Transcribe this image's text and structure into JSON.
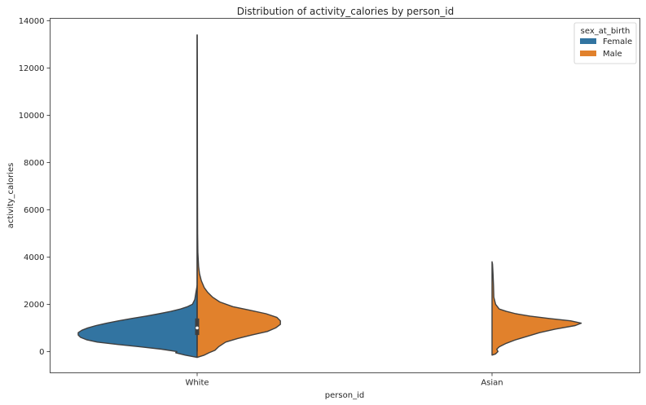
{
  "chart_data": {
    "type": "violin",
    "split": true,
    "title": "Distribution of activity_calories by person_id",
    "xlabel": "person_id",
    "ylabel": "activity_calories",
    "categories": [
      "White",
      "Asian"
    ],
    "ylim": [
      -900,
      14100
    ],
    "yticks": [
      0,
      2000,
      4000,
      6000,
      8000,
      10000,
      12000,
      14000
    ],
    "grid": false,
    "legend": {
      "title": "sex_at_birth",
      "placement": "top-right",
      "entries": [
        {
          "label": "Female",
          "color": "#3274a1"
        },
        {
          "label": "Male",
          "color": "#e1812c"
        }
      ]
    },
    "series": [
      {
        "name": "Female",
        "color": "#3274a1",
        "violins": [
          {
            "category": "White",
            "side": "left",
            "profile": [
              [
                -250,
                0.0
              ],
              [
                -150,
                0.1
              ],
              [
                -50,
                0.18
              ],
              [
                0,
                0.17
              ],
              [
                100,
                0.3
              ],
              [
                200,
                0.48
              ],
              [
                300,
                0.67
              ],
              [
                400,
                0.84
              ],
              [
                500,
                0.93
              ],
              [
                600,
                0.98
              ],
              [
                700,
                1.0
              ],
              [
                800,
                1.0
              ],
              [
                900,
                0.97
              ],
              [
                1000,
                0.92
              ],
              [
                1100,
                0.85
              ],
              [
                1200,
                0.76
              ],
              [
                1300,
                0.66
              ],
              [
                1400,
                0.55
              ],
              [
                1500,
                0.43
              ],
              [
                1600,
                0.32
              ],
              [
                1700,
                0.22
              ],
              [
                1800,
                0.14
              ],
              [
                1900,
                0.08
              ],
              [
                2000,
                0.04
              ],
              [
                2200,
                0.02
              ],
              [
                2500,
                0.01
              ],
              [
                2800,
                0.0
              ]
            ]
          }
        ]
      },
      {
        "name": "Male",
        "color": "#e1812c",
        "violins": [
          {
            "category": "White",
            "side": "right",
            "profile": [
              [
                -250,
                0.0
              ],
              [
                -150,
                0.06
              ],
              [
                -50,
                0.1
              ],
              [
                50,
                0.15
              ],
              [
                200,
                0.18
              ],
              [
                400,
                0.24
              ],
              [
                550,
                0.34
              ],
              [
                700,
                0.46
              ],
              [
                850,
                0.59
              ],
              [
                1000,
                0.66
              ],
              [
                1150,
                0.7
              ],
              [
                1300,
                0.7
              ],
              [
                1450,
                0.67
              ],
              [
                1600,
                0.58
              ],
              [
                1750,
                0.44
              ],
              [
                1900,
                0.3
              ],
              [
                2100,
                0.19
              ],
              [
                2300,
                0.13
              ],
              [
                2500,
                0.09
              ],
              [
                2700,
                0.06
              ],
              [
                3000,
                0.035
              ],
              [
                3300,
                0.02
              ],
              [
                3600,
                0.012
              ],
              [
                4200,
                0.006
              ],
              [
                5000,
                0.004
              ],
              [
                7000,
                0.003
              ],
              [
                10000,
                0.002
              ],
              [
                12000,
                0.002
              ],
              [
                13400,
                0.0
              ]
            ]
          },
          {
            "category": "Asian",
            "side": "right",
            "profile": [
              [
                -150,
                0.0
              ],
              [
                -100,
                0.03
              ],
              [
                0,
                0.05
              ],
              [
                100,
                0.04
              ],
              [
                200,
                0.06
              ],
              [
                350,
                0.12
              ],
              [
                500,
                0.2
              ],
              [
                650,
                0.3
              ],
              [
                800,
                0.4
              ],
              [
                950,
                0.53
              ],
              [
                1100,
                0.7
              ],
              [
                1200,
                0.75
              ],
              [
                1300,
                0.66
              ],
              [
                1400,
                0.48
              ],
              [
                1500,
                0.32
              ],
              [
                1600,
                0.2
              ],
              [
                1700,
                0.12
              ],
              [
                1800,
                0.06
              ],
              [
                2000,
                0.03
              ],
              [
                2300,
                0.015
              ],
              [
                2800,
                0.012
              ],
              [
                3300,
                0.008
              ],
              [
                3700,
                0.004
              ],
              [
                3800,
                0.0
              ]
            ]
          }
        ]
      }
    ],
    "box": {
      "category": "White",
      "q1": 700,
      "median": 1000,
      "q3": 1400,
      "whisker_low": 0,
      "whisker_high": 13400
    }
  }
}
